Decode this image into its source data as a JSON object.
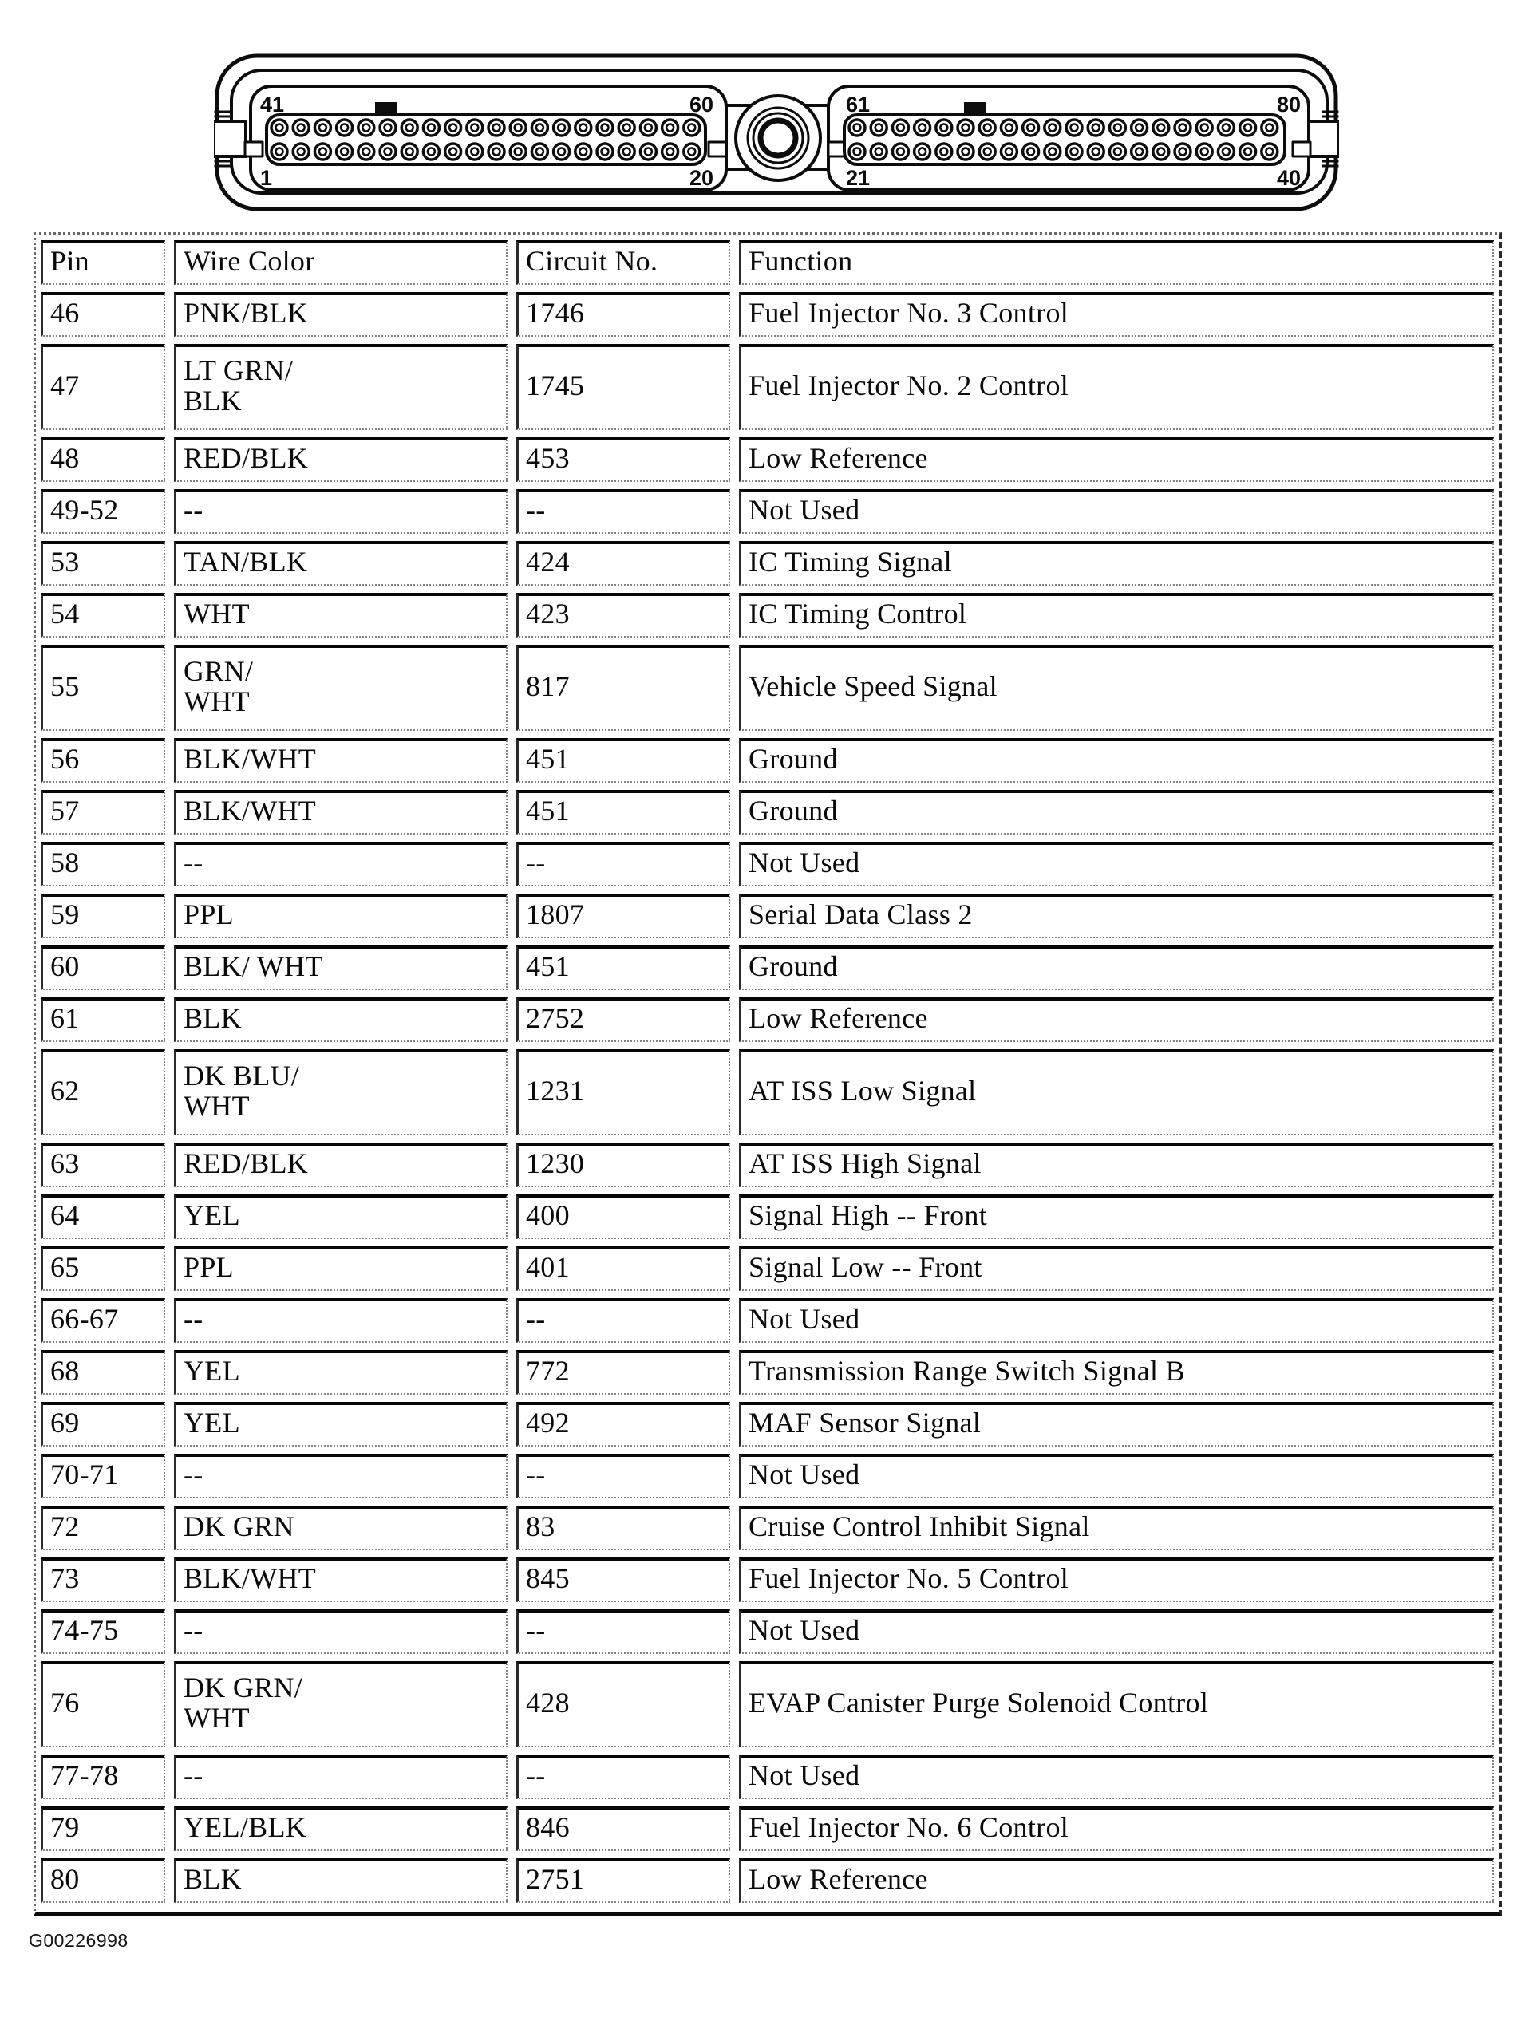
{
  "connector": {
    "pins_per_row": 20,
    "rows_per_bank": 2,
    "left_bank": {
      "top_left": "41",
      "top_right": "60",
      "bottom_left": "1",
      "bottom_right": "20"
    },
    "right_bank": {
      "top_left": "61",
      "top_right": "80",
      "bottom_left": "21",
      "bottom_right": "40"
    }
  },
  "table": {
    "headers": [
      "Pin",
      "Wire Color",
      "Circuit No.",
      "Function"
    ],
    "rows": [
      {
        "pin": "46",
        "wire": "PNK/BLK",
        "circuit": "1746",
        "function": "Fuel Injector No. 3 Control",
        "tall": false
      },
      {
        "pin": "47",
        "wire": "LT GRN/\nBLK",
        "circuit": "1745",
        "function": "Fuel Injector No. 2 Control",
        "tall": true
      },
      {
        "pin": "48",
        "wire": "RED/BLK",
        "circuit": "453",
        "function": "Low Reference",
        "tall": false
      },
      {
        "pin": "49-52",
        "wire": "--",
        "circuit": "--",
        "function": "Not Used",
        "tall": false
      },
      {
        "pin": "53",
        "wire": "TAN/BLK",
        "circuit": "424",
        "function": "IC Timing Signal",
        "tall": false
      },
      {
        "pin": "54",
        "wire": "WHT",
        "circuit": "423",
        "function": "IC Timing Control",
        "tall": false
      },
      {
        "pin": "55",
        "wire": "GRN/\nWHT",
        "circuit": "817",
        "function": "Vehicle Speed Signal",
        "tall": true
      },
      {
        "pin": "56",
        "wire": "BLK/WHT",
        "circuit": "451",
        "function": "Ground",
        "tall": false
      },
      {
        "pin": "57",
        "wire": "BLK/WHT",
        "circuit": "451",
        "function": "Ground",
        "tall": false
      },
      {
        "pin": "58",
        "wire": "--",
        "circuit": "--",
        "function": "Not Used",
        "tall": false
      },
      {
        "pin": "59",
        "wire": "PPL",
        "circuit": "1807",
        "function": "Serial Data Class 2",
        "tall": false
      },
      {
        "pin": "60",
        "wire": "BLK/ WHT",
        "circuit": "451",
        "function": "Ground",
        "tall": false
      },
      {
        "pin": "61",
        "wire": "BLK",
        "circuit": "2752",
        "function": "Low Reference",
        "tall": false
      },
      {
        "pin": "62",
        "wire": "DK BLU/\nWHT",
        "circuit": "1231",
        "function": "AT ISS Low Signal",
        "tall": true
      },
      {
        "pin": "63",
        "wire": "RED/BLK",
        "circuit": "1230",
        "function": "AT ISS High Signal",
        "tall": false
      },
      {
        "pin": "64",
        "wire": "YEL",
        "circuit": "400",
        "function": "Signal High -- Front",
        "tall": false
      },
      {
        "pin": "65",
        "wire": "PPL",
        "circuit": "401",
        "function": "Signal Low -- Front",
        "tall": false
      },
      {
        "pin": "66-67",
        "wire": "--",
        "circuit": "--",
        "function": "Not Used",
        "tall": false
      },
      {
        "pin": "68",
        "wire": "YEL",
        "circuit": "772",
        "function": "Transmission Range Switch Signal B",
        "tall": false
      },
      {
        "pin": "69",
        "wire": "YEL",
        "circuit": "492",
        "function": "MAF Sensor Signal",
        "tall": false
      },
      {
        "pin": "70-71",
        "wire": "--",
        "circuit": "--",
        "function": "Not Used",
        "tall": false
      },
      {
        "pin": "72",
        "wire": "DK GRN",
        "circuit": "83",
        "function": "Cruise Control Inhibit Signal",
        "tall": false
      },
      {
        "pin": "73",
        "wire": "BLK/WHT",
        "circuit": "845",
        "function": "Fuel Injector No. 5 Control",
        "tall": false
      },
      {
        "pin": "74-75",
        "wire": "--",
        "circuit": "--",
        "function": "Not Used",
        "tall": false
      },
      {
        "pin": "76",
        "wire": "DK GRN/\nWHT",
        "circuit": "428",
        "function": "EVAP Canister Purge Solenoid Control",
        "tall": true
      },
      {
        "pin": "77-78",
        "wire": "--",
        "circuit": "--",
        "function": "Not Used",
        "tall": false
      },
      {
        "pin": "79",
        "wire": "YEL/BLK",
        "circuit": "846",
        "function": "Fuel Injector No. 6 Control",
        "tall": false
      },
      {
        "pin": "80",
        "wire": "BLK",
        "circuit": "2751",
        "function": "Low Reference",
        "tall": false
      }
    ]
  },
  "figure_id": "G00226998"
}
